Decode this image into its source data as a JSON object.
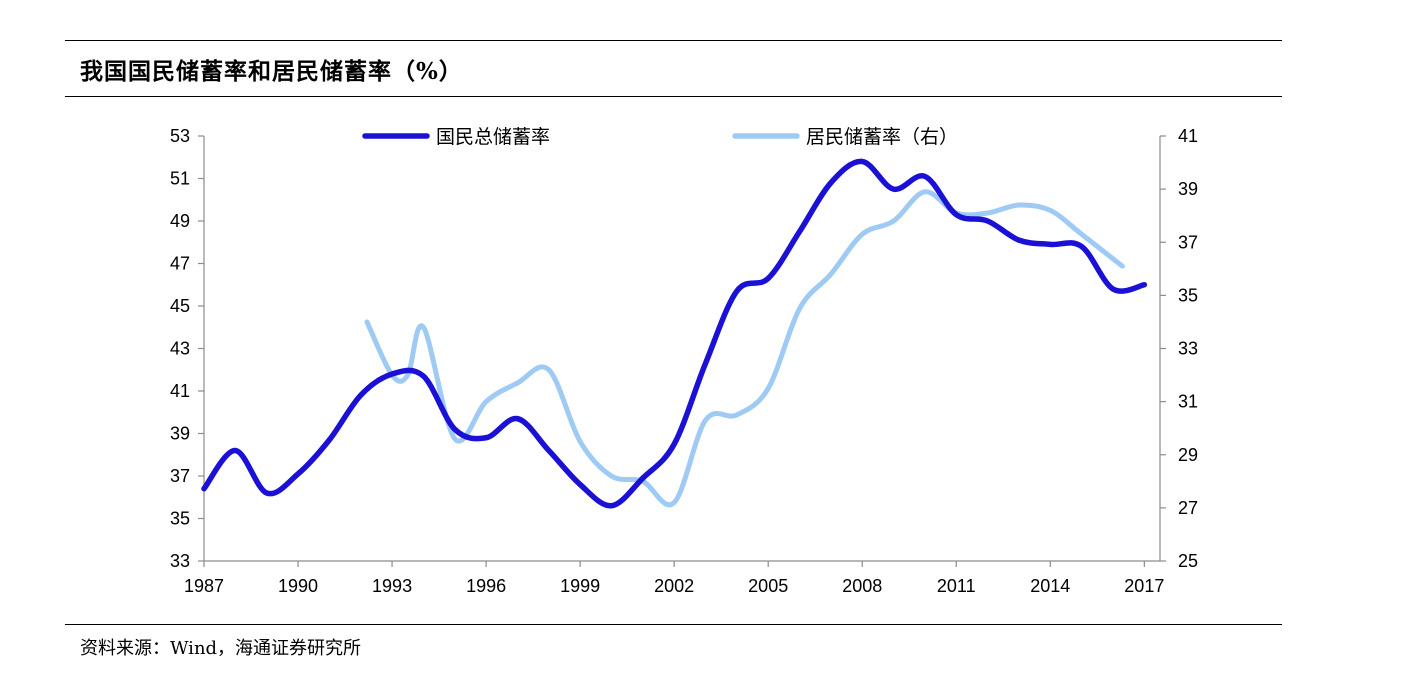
{
  "header": {
    "title": "我国国民储蓄率和居民储蓄率（%）"
  },
  "footer": {
    "source": "资料来源：Wind，海通证券研究所"
  },
  "chart_data": {
    "type": "line",
    "title": "我国国民储蓄率和居民储蓄率（%）",
    "xlim": [
      1987,
      2017.5
    ],
    "x_ticks": [
      "1987",
      "1990",
      "1993",
      "1996",
      "1999",
      "2002",
      "2005",
      "2008",
      "2011",
      "2014",
      "2017"
    ],
    "y_left": {
      "ylim": [
        33,
        53
      ],
      "ticks": [
        "33",
        "35",
        "37",
        "39",
        "41",
        "43",
        "45",
        "47",
        "49",
        "51",
        "53"
      ]
    },
    "y_right": {
      "ylim": [
        25,
        41
      ],
      "ticks": [
        "25",
        "27",
        "29",
        "31",
        "33",
        "35",
        "37",
        "39",
        "41"
      ]
    },
    "legend_placement": "top",
    "grid": false,
    "series": [
      {
        "name": "国民总储蓄率",
        "axis": "left",
        "color": "#1a10d6",
        "x": [
          1987,
          1988,
          1989,
          1990,
          1991,
          1992,
          1993,
          1994,
          1995,
          1996,
          1997,
          1998,
          1999,
          2000,
          2001,
          2002,
          2003,
          2004,
          2005,
          2006,
          2007,
          2008,
          2009,
          2010,
          2011,
          2012,
          2013,
          2014,
          2015,
          2016,
          2017
        ],
        "values": [
          36.4,
          38.2,
          36.2,
          37.1,
          38.7,
          40.8,
          41.8,
          41.7,
          39.2,
          38.8,
          39.7,
          38.2,
          36.6,
          35.6,
          36.9,
          38.5,
          42.3,
          45.7,
          46.3,
          48.5,
          50.8,
          51.8,
          50.5,
          51.1,
          49.3,
          49.0,
          48.1,
          47.9,
          47.8,
          45.8,
          46.0
        ]
      },
      {
        "name": "居民储蓄率（右）",
        "axis": "right",
        "color": "#9ecaf4",
        "x": [
          1992.2,
          1993,
          1993.5,
          1994,
          1995,
          1996,
          1997,
          1998,
          1999,
          2000,
          2001,
          2002,
          2003,
          2004,
          2005,
          2006,
          2007,
          2008,
          2009,
          2010,
          2011,
          2012,
          2013,
          2014,
          2015,
          2016.3
        ],
        "values": [
          34.0,
          32.0,
          32.0,
          33.8,
          29.6,
          31.0,
          31.7,
          32.2,
          29.5,
          28.2,
          28.0,
          27.2,
          30.3,
          30.5,
          31.5,
          34.5,
          35.8,
          37.3,
          37.8,
          38.9,
          38.1,
          38.1,
          38.4,
          38.2,
          37.3,
          36.1
        ]
      }
    ]
  }
}
